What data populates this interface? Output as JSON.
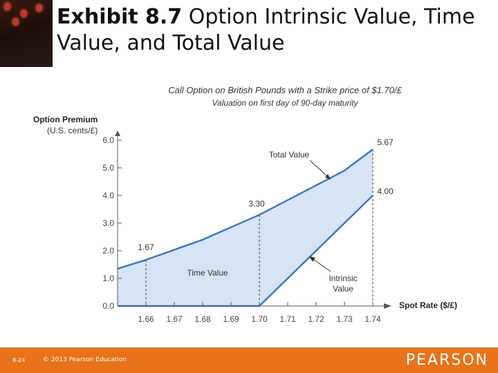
{
  "slide": {
    "title_bold": "Exhibit 8.7",
    "title_rest": "Option Intrinsic Value, Time Value, and Total Value",
    "page_number": "8-24",
    "copyright": "© 2013 Pearson Education",
    "brand": "PEARSON",
    "footer_color": "#e8731a"
  },
  "chart_data": {
    "type": "area",
    "title": "Call Option on British Pounds with a Strike price of $1.70/£",
    "subtitle": "Valuation on first day of 90-day maturity",
    "ylabel": "Option Premium",
    "ylabel_units": "(U.S. cents/£)",
    "xlabel": "Spot Rate ($/£)",
    "ylim": [
      0,
      6.0
    ],
    "xlim": [
      1.65,
      1.74
    ],
    "yticks": [
      "0.0",
      "1.0",
      "2.0",
      "3.0",
      "4.0",
      "5.0",
      "6.0"
    ],
    "xticks": [
      "1.66",
      "1.67",
      "1.68",
      "1.69",
      "1.70",
      "1.71",
      "1.72",
      "1.73",
      "1.74"
    ],
    "series": [
      {
        "name": "Total Value",
        "x": [
          1.65,
          1.66,
          1.68,
          1.7,
          1.73,
          1.74
        ],
        "y": [
          1.35,
          1.67,
          2.4,
          3.3,
          4.9,
          5.67
        ]
      },
      {
        "name": "Intrinsic Value",
        "x": [
          1.65,
          1.7,
          1.74
        ],
        "y": [
          0,
          0,
          4.0
        ]
      }
    ],
    "region_label": "Time Value",
    "point_labels": [
      {
        "text": "1.67",
        "x": 1.66,
        "y": 1.67
      },
      {
        "text": "3.30",
        "x": 1.7,
        "y": 3.3
      },
      {
        "text": "5.67",
        "x": 1.74,
        "y": 5.67
      },
      {
        "text": "4.00",
        "x": 1.74,
        "y": 4.0
      }
    ],
    "line_color": "#3b78c2",
    "fill_color": "#d6e4f5"
  }
}
